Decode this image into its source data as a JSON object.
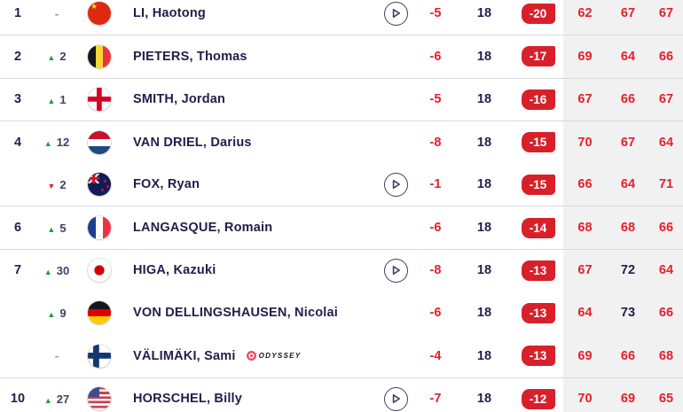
{
  "colors": {
    "score_red": "#e4202c",
    "badge_red": "#d8202b",
    "ink_navy": "#1f1f4b",
    "move_up_green": "#1c9b4f",
    "move_down_red": "#e4202c",
    "rounds_band_gray": "#f1f1f2",
    "divider_gray": "#d9d9dd",
    "play_outline": "#3d3d66"
  },
  "rows": [
    {
      "pos": "1",
      "move": {
        "dir": "none",
        "value": "-"
      },
      "country": "china",
      "name": "LI, Haotong",
      "has_video": true,
      "today": "-5",
      "thru": "18",
      "total": "-20",
      "rounds": [
        {
          "value": "62",
          "tone": "red"
        },
        {
          "value": "67",
          "tone": "red"
        },
        {
          "value": "67",
          "tone": "red"
        }
      ]
    },
    {
      "pos": "2",
      "move": {
        "dir": "up",
        "value": "2"
      },
      "country": "belgium",
      "name": "PIETERS, Thomas",
      "has_video": false,
      "today": "-6",
      "thru": "18",
      "total": "-17",
      "rounds": [
        {
          "value": "69",
          "tone": "red"
        },
        {
          "value": "64",
          "tone": "red"
        },
        {
          "value": "66",
          "tone": "red"
        }
      ]
    },
    {
      "pos": "3",
      "move": {
        "dir": "up",
        "value": "1"
      },
      "country": "england",
      "name": "SMITH, Jordan",
      "has_video": false,
      "today": "-5",
      "thru": "18",
      "total": "-16",
      "rounds": [
        {
          "value": "67",
          "tone": "red"
        },
        {
          "value": "66",
          "tone": "red"
        },
        {
          "value": "67",
          "tone": "red"
        }
      ]
    },
    {
      "pos": "4",
      "move": {
        "dir": "up",
        "value": "12"
      },
      "country": "netherlands",
      "name": "VAN DRIEL, Darius",
      "has_video": false,
      "today": "-8",
      "thru": "18",
      "total": "-15",
      "rounds": [
        {
          "value": "70",
          "tone": "red"
        },
        {
          "value": "67",
          "tone": "red"
        },
        {
          "value": "64",
          "tone": "red"
        }
      ]
    },
    {
      "pos": "",
      "move": {
        "dir": "down",
        "value": "2"
      },
      "country": "nz",
      "name": "FOX, Ryan",
      "has_video": true,
      "today": "-1",
      "thru": "18",
      "total": "-15",
      "rounds": [
        {
          "value": "66",
          "tone": "red"
        },
        {
          "value": "64",
          "tone": "red"
        },
        {
          "value": "71",
          "tone": "red"
        }
      ]
    },
    {
      "pos": "6",
      "move": {
        "dir": "up",
        "value": "5"
      },
      "country": "france",
      "name": "LANGASQUE, Romain",
      "has_video": false,
      "today": "-6",
      "thru": "18",
      "total": "-14",
      "rounds": [
        {
          "value": "68",
          "tone": "red"
        },
        {
          "value": "68",
          "tone": "red"
        },
        {
          "value": "66",
          "tone": "red"
        }
      ]
    },
    {
      "pos": "7",
      "move": {
        "dir": "up",
        "value": "30"
      },
      "country": "japan",
      "name": "HIGA, Kazuki",
      "has_video": true,
      "today": "-8",
      "thru": "18",
      "total": "-13",
      "rounds": [
        {
          "value": "67",
          "tone": "red"
        },
        {
          "value": "72",
          "tone": "navy"
        },
        {
          "value": "64",
          "tone": "red"
        }
      ]
    },
    {
      "pos": "",
      "move": {
        "dir": "up",
        "value": "9"
      },
      "country": "germany",
      "name": "VON DELLINGSHAUSEN, Nicolai",
      "has_video": false,
      "today": "-6",
      "thru": "18",
      "total": "-13",
      "rounds": [
        {
          "value": "64",
          "tone": "red"
        },
        {
          "value": "73",
          "tone": "navy"
        },
        {
          "value": "66",
          "tone": "red"
        }
      ]
    },
    {
      "pos": "",
      "move": {
        "dir": "none",
        "value": "-"
      },
      "country": "finland",
      "name": "VÄLIMÄKI, Sami",
      "sponsor": "ODYSSEY",
      "has_video": false,
      "today": "-4",
      "thru": "18",
      "total": "-13",
      "rounds": [
        {
          "value": "69",
          "tone": "red"
        },
        {
          "value": "66",
          "tone": "red"
        },
        {
          "value": "68",
          "tone": "red"
        }
      ]
    },
    {
      "pos": "10",
      "move": {
        "dir": "up",
        "value": "27"
      },
      "country": "usa",
      "name": "HORSCHEL, Billy",
      "has_video": true,
      "today": "-7",
      "thru": "18",
      "total": "-12",
      "rounds": [
        {
          "value": "70",
          "tone": "red"
        },
        {
          "value": "69",
          "tone": "red"
        },
        {
          "value": "65",
          "tone": "red"
        }
      ]
    }
  ]
}
